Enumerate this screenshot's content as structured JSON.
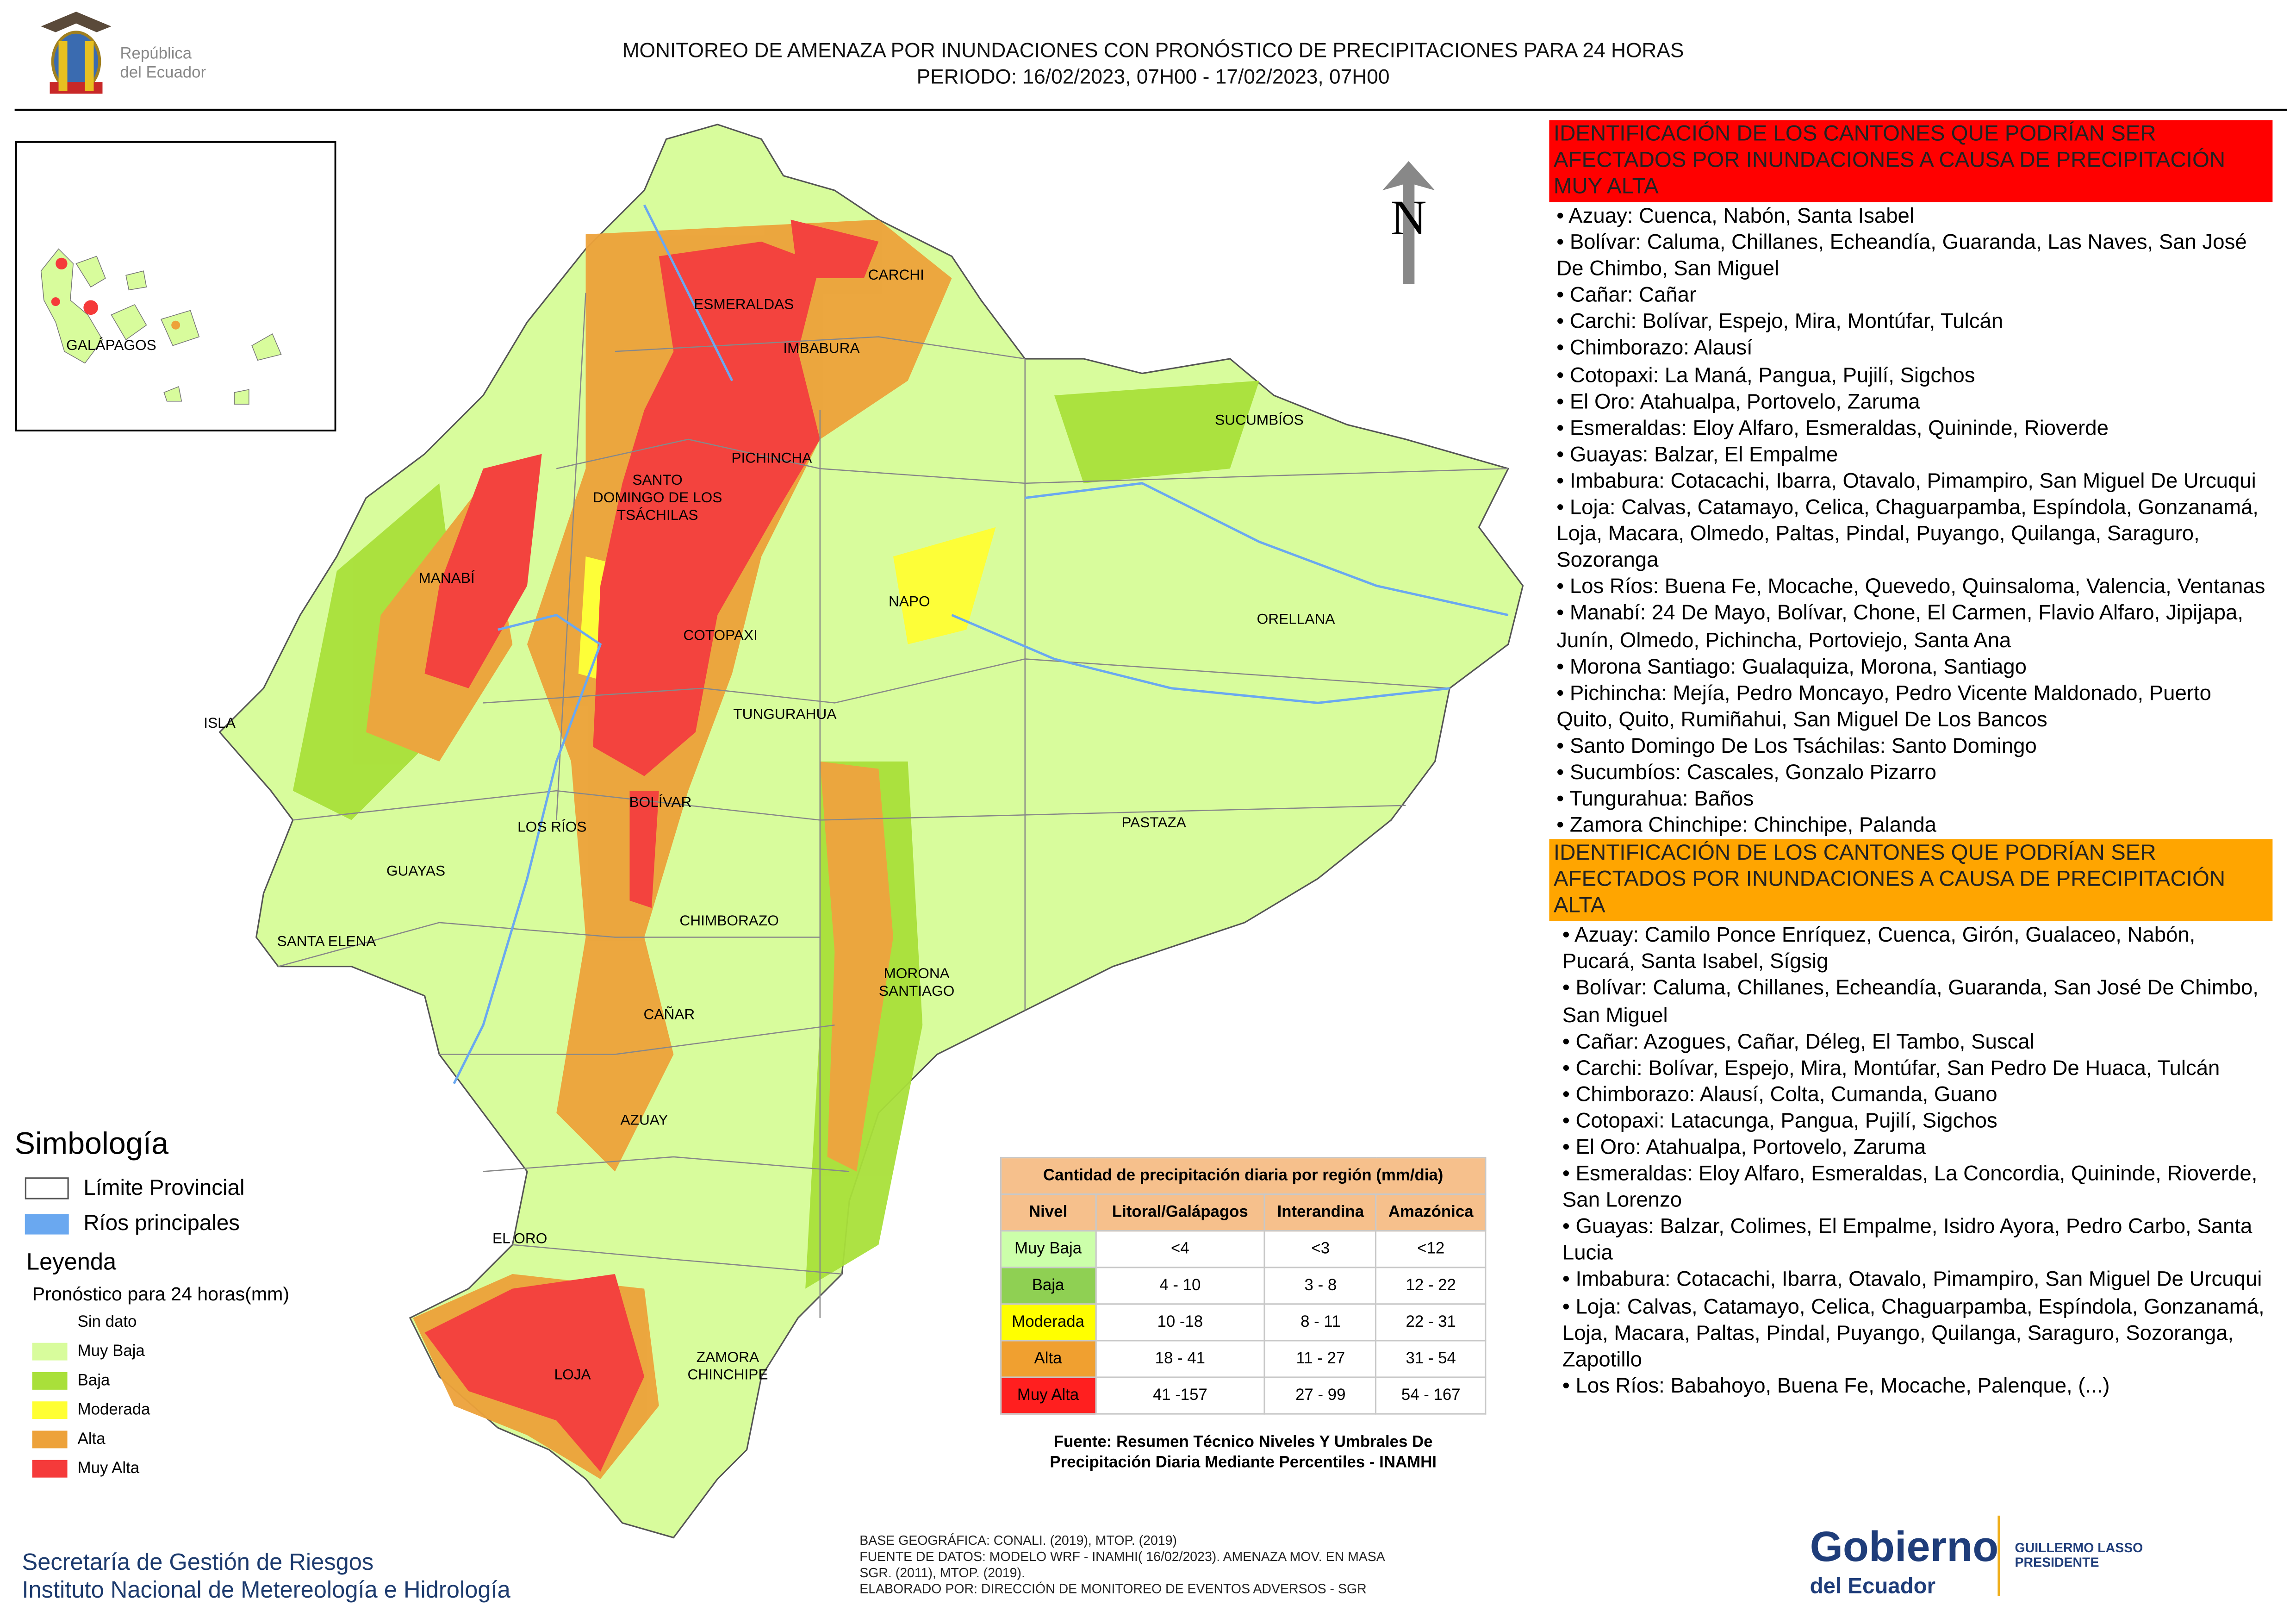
{
  "header": {
    "logo_text": [
      "República",
      "del Ecuador"
    ],
    "title": [
      "MONITOREO DE AMENAZA POR INUNDACIONES  CON PRONÓSTICO DE  PRECIPITACIONES PARA 24 HORAS",
      "PERIODO: 16/02/2023, 07H00 - 17/02/2023, 07H00"
    ]
  },
  "map": {
    "north": "N",
    "inset_label": "GALÁPAGOS",
    "labels": [
      [
        "CARCHI"
      ],
      [
        "ESMERALDAS"
      ],
      [
        "IMBABURA"
      ],
      [
        "SUCUMBÍOS"
      ],
      [
        "PICHINCHA"
      ],
      [
        "SANTO",
        "DOMINGO DE LOS",
        "TSÁCHILAS"
      ],
      [
        "MANABÍ"
      ],
      [
        "NAPO"
      ],
      [
        "ORELLANA"
      ],
      [
        "COTOPAXI"
      ],
      [
        "ISLA"
      ],
      [
        "TUNGURAHUA"
      ],
      [
        "BOLÍVAR"
      ],
      [
        "LOS RÍOS"
      ],
      [
        "PASTAZA"
      ],
      [
        "GUAYAS"
      ],
      [
        "CHIMBORAZO"
      ],
      [
        "SANTA ELENA"
      ],
      [
        "MORONA",
        "SANTIAGO"
      ],
      [
        "CAÑAR"
      ],
      [
        "AZUAY"
      ],
      [
        "EL ORO"
      ],
      [
        "LOJA"
      ],
      [
        "ZAMORA",
        "CHINCHIPE"
      ]
    ]
  },
  "symbology": {
    "title": "Simbología",
    "items": [
      "Límite Provincial",
      "Ríos principales"
    ],
    "legend_title": "Leyenda",
    "legend_subtitle": "Pronóstico para 24 horas(mm)",
    "classes": [
      {
        "label": "Sin dato",
        "color": "#ffffff"
      },
      {
        "label": " Muy Baja",
        "color": "#d8fc9c"
      },
      {
        "label": "Baja",
        "color": "#a9e03a"
      },
      {
        "label": "Moderada",
        "color": "#ffff33"
      },
      {
        "label": "Alta",
        "color": "#eda23a"
      },
      {
        "label": "Muy Alta",
        "color": "#f53a3a"
      }
    ]
  },
  "table": {
    "title": "Cantidad de precipitación diaria por región (mm/dia)",
    "headers": [
      "Nivel",
      "Litoral/Galápagos",
      "Interandina",
      "Amazónica"
    ],
    "rows": [
      [
        "Muy Baja",
        "<4",
        "<3",
        "<12"
      ],
      [
        "Baja",
        "4 - 10",
        "3 - 8",
        "12 - 22"
      ],
      [
        "Moderada",
        "10 -18",
        "8 - 11",
        "22 - 31"
      ],
      [
        "Alta",
        "18 - 41",
        "11 - 27",
        "31 - 54"
      ],
      [
        "Muy Alta",
        "41 -157",
        "27 - 99",
        "54 - 167"
      ]
    ],
    "row_colors": [
      "#ccffaa",
      "#8fd053",
      "#ffff00",
      "#f0a030",
      "#ff1f1f"
    ],
    "source": [
      "Fuente: Resumen Técnico Niveles Y Umbrales De",
      "Precipitación Diaria Mediante Percentiles - INAMHI"
    ]
  },
  "panels": [
    {
      "title": "IDENTIFICACIÓN DE LOS CANTONES QUE PODRÍAN SER AFECTADOS POR INUNDACIONES  A CAUSA DE PRECIPITACIÓN MUY ALTA",
      "color": "#ff0000",
      "items": [
        "• Azuay: Cuenca, Nabón, Santa Isabel",
        "• Bolívar: Caluma, Chillanes, Echeandía, Guaranda, Las Naves, San José De Chimbo, San Miguel",
        "• Cañar: Cañar",
        "• Carchi: Bolívar, Espejo, Mira, Montúfar, Tulcán",
        "• Chimborazo: Alausí",
        "• Cotopaxi: La Maná, Pangua, Pujilí, Sigchos",
        "• El Oro: Atahualpa, Portovelo, Zaruma",
        "• Esmeraldas: Eloy Alfaro, Esmeraldas, Quininde, Rioverde",
        "• Guayas: Balzar, El Empalme",
        "• Imbabura: Cotacachi, Ibarra, Otavalo, Pimampiro, San Miguel De Urcuqui",
        "• Loja: Calvas, Catamayo, Celica, Chaguarpamba, Espíndola, Gonzanamá, Loja, Macara, Olmedo, Paltas, Pindal, Puyango, Quilanga, Saraguro, Sozoranga",
        "• Los Ríos: Buena Fe, Mocache, Quevedo, Quinsaloma, Valencia, Ventanas",
        "• Manabí: 24 De Mayo, Bolívar, Chone, El Carmen, Flavio Alfaro, Jipijapa, Junín, Olmedo, Pichincha, Portoviejo, Santa Ana",
        "• Morona Santiago: Gualaquiza, Morona, Santiago",
        "• Pichincha: Mejía, Pedro Moncayo, Pedro Vicente Maldonado, Puerto Quito, Quito, Rumiñahui, San Miguel De Los Bancos",
        "• Santo Domingo De Los Tsáchilas: Santo Domingo",
        "• Sucumbíos: Cascales, Gonzalo Pizarro",
        "• Tungurahua: Baños",
        "• Zamora Chinchipe: Chinchipe, Palanda"
      ]
    },
    {
      "title": "IDENTIFICACIÓN DE LOS CANTONES QUE  PODRÍAN SER AFECTADOS POR INUNDACIONES  A CAUSA DE PRECIPITACIÓN ALTA",
      "color": "#ffa500",
      "items": [
        "• Azuay: Camilo Ponce Enríquez, Cuenca, Girón, Gualaceo, Nabón, Pucará, Santa Isabel, Sígsig",
        "• Bolívar: Caluma, Chillanes, Echeandía, Guaranda, San José De Chimbo, San Miguel",
        "• Cañar: Azogues, Cañar, Déleg, El Tambo, Suscal",
        "• Carchi: Bolívar, Espejo, Mira, Montúfar, San Pedro De Huaca, Tulcán",
        "• Chimborazo: Alausí, Colta, Cumanda, Guano",
        "• Cotopaxi: Latacunga, Pangua, Pujilí, Sigchos",
        "• El Oro: Atahualpa, Portovelo, Zaruma",
        "• Esmeraldas: Eloy Alfaro, Esmeraldas, La Concordia, Quininde, Rioverde, San Lorenzo",
        "• Guayas: Balzar, Colimes, El Empalme, Isidro Ayora, Pedro Carbo, Santa Lucia",
        "• Imbabura: Cotacachi, Ibarra, Otavalo, Pimampiro, San Miguel De Urcuqui",
        "• Loja: Calvas, Catamayo, Celica, Chaguarpamba, Espíndola, Gonzanamá, Loja, Macara, Paltas, Pindal, Puyango, Quilanga, Saraguro, Sozoranga, Zapotillo",
        "• Los Ríos: Babahoyo, Buena Fe, Mocache, Palenque, (...)"
      ]
    }
  ],
  "footer": {
    "institutions": [
      "Secretaría de Gestión de Riesgos",
      "Instituto Nacional de Metereología e Hidrología"
    ],
    "credits": [
      "BASE GEOGRÁFICA: CONALI. (2019), MTOP. (2019)",
      "FUENTE DE DATOS: MODELO WRF - INAMHI( 16/02/2023).  AMENAZA MOV. EN MASA",
      "SGR. (2011), MTOP. (2019).",
      "ELABORADO POR: DIRECCIÓN DE MONITOREO DE EVENTOS ADVERSOS - SGR"
    ],
    "gov_logo": [
      "Gobierno",
      "del Ecuador"
    ],
    "president": [
      "GUILLERMO LASSO",
      "PRESIDENTE"
    ]
  }
}
